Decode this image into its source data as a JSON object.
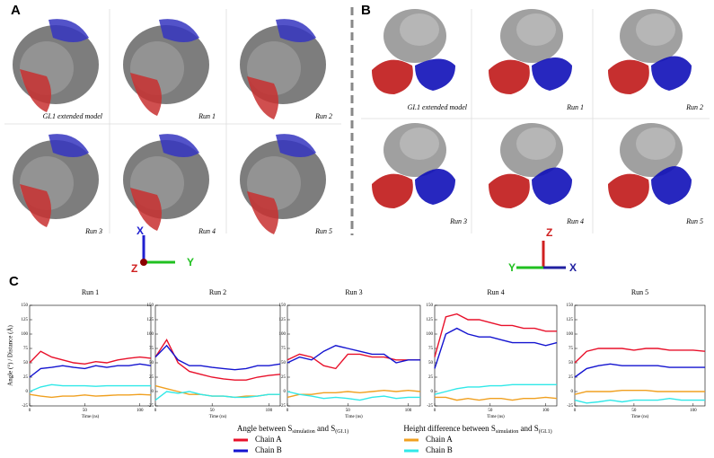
{
  "figure": {
    "panels": [
      {
        "label": "A",
        "images": [
          "GI.1 extended model",
          "Run 1",
          "Run 2",
          "Run 3",
          "Run 4",
          "Run 5"
        ],
        "axes": [
          "X",
          "Y",
          "Z"
        ]
      },
      {
        "label": "B",
        "images": [
          "GI.1 extended model",
          "Run 1",
          "Run 2",
          "Run 3",
          "Run 4",
          "Run 5"
        ],
        "axes": [
          "Z",
          "Y",
          "X"
        ]
      }
    ],
    "panel_c": "C",
    "legend": {
      "angle_title": [
        "Angle between S",
        "simulation",
        " and S",
        "(GI.1)"
      ],
      "height_title": [
        "Height difference between S",
        "simulation",
        " and S",
        "(GI.1)"
      ]
    }
  },
  "chart_data": [
    {
      "type": "line",
      "title": "Run 1",
      "xlabel": "Time (ns)",
      "ylabel": "Angle (°) / Distance (Å)",
      "x": [
        0,
        10,
        20,
        30,
        40,
        50,
        60,
        70,
        80,
        90,
        100,
        110
      ],
      "xlim": [
        0,
        110
      ],
      "xticks": [
        0,
        50,
        100
      ],
      "ylim": [
        -25,
        150
      ],
      "yticks": [
        -25,
        0,
        25,
        50,
        75,
        100,
        125,
        150
      ],
      "series": [
        {
          "name": "Chain A",
          "color": "#e8102a",
          "values": [
            50,
            70,
            60,
            55,
            50,
            48,
            52,
            50,
            55,
            58,
            60,
            58
          ]
        },
        {
          "name": "Chain B",
          "color": "#1414d0",
          "values": [
            25,
            40,
            42,
            45,
            42,
            40,
            45,
            42,
            45,
            45,
            48,
            45
          ]
        },
        {
          "name": "Chain A",
          "color": "#f0a020",
          "values": [
            -5,
            -8,
            -10,
            -8,
            -8,
            -6,
            -8,
            -7,
            -6,
            -6,
            -5,
            -6
          ]
        },
        {
          "name": "Chain B",
          "color": "#30e8e8",
          "values": [
            0,
            8,
            12,
            10,
            10,
            10,
            9,
            10,
            10,
            10,
            10,
            10
          ]
        }
      ]
    },
    {
      "type": "line",
      "title": "Run 2",
      "xlabel": "Time (ns)",
      "x": [
        0,
        10,
        20,
        30,
        40,
        50,
        60,
        70,
        80,
        90,
        100,
        110
      ],
      "xlim": [
        0,
        110
      ],
      "xticks": [
        0,
        50,
        100
      ],
      "ylim": [
        -25,
        150
      ],
      "yticks": [
        -25,
        0,
        25,
        50,
        75,
        100,
        125,
        150
      ],
      "series": [
        {
          "name": "Chain A",
          "color": "#e8102a",
          "values": [
            60,
            90,
            50,
            35,
            30,
            25,
            22,
            20,
            20,
            25,
            28,
            30
          ]
        },
        {
          "name": "Chain B",
          "color": "#1414d0",
          "values": [
            60,
            80,
            55,
            45,
            45,
            42,
            40,
            38,
            40,
            45,
            45,
            48
          ]
        },
        {
          "name": "Chain A",
          "color": "#f0a020",
          "values": [
            10,
            5,
            0,
            -5,
            -5,
            -8,
            -8,
            -10,
            -8,
            -8,
            -5,
            -5
          ]
        },
        {
          "name": "Chain B",
          "color": "#30e8e8",
          "values": [
            -15,
            0,
            -3,
            0,
            -5,
            -8,
            -8,
            -10,
            -10,
            -8,
            -5,
            -5
          ]
        }
      ]
    },
    {
      "type": "line",
      "title": "Run 3",
      "xlabel": "Time (ns)",
      "x": [
        0,
        10,
        20,
        30,
        40,
        50,
        60,
        70,
        80,
        90,
        100,
        110
      ],
      "xlim": [
        0,
        110
      ],
      "xticks": [
        0,
        50,
        100
      ],
      "ylim": [
        -25,
        150
      ],
      "yticks": [
        -25,
        0,
        25,
        50,
        75,
        100,
        125,
        150
      ],
      "series": [
        {
          "name": "Chain A",
          "color": "#e8102a",
          "values": [
            55,
            65,
            60,
            45,
            40,
            65,
            65,
            60,
            60,
            55,
            55,
            55
          ]
        },
        {
          "name": "Chain B",
          "color": "#1414d0",
          "values": [
            50,
            60,
            55,
            70,
            80,
            75,
            70,
            65,
            65,
            50,
            55,
            55
          ]
        },
        {
          "name": "Chain A",
          "color": "#f0a020",
          "values": [
            -10,
            -5,
            -5,
            -2,
            -2,
            0,
            -2,
            0,
            2,
            0,
            2,
            0
          ]
        },
        {
          "name": "Chain B",
          "color": "#30e8e8",
          "values": [
            0,
            -5,
            -8,
            -12,
            -10,
            -12,
            -15,
            -10,
            -8,
            -12,
            -10,
            -10
          ]
        }
      ]
    },
    {
      "type": "line",
      "title": "Run 4",
      "xlabel": "Time (ns)",
      "x": [
        0,
        10,
        20,
        30,
        40,
        50,
        60,
        70,
        80,
        90,
        100,
        110
      ],
      "xlim": [
        0,
        110
      ],
      "xticks": [
        0,
        50,
        100
      ],
      "ylim": [
        -25,
        150
      ],
      "yticks": [
        -25,
        0,
        25,
        50,
        75,
        100,
        125,
        150
      ],
      "series": [
        {
          "name": "Chain A",
          "color": "#e8102a",
          "values": [
            60,
            130,
            135,
            125,
            125,
            120,
            115,
            115,
            110,
            110,
            105,
            105
          ]
        },
        {
          "name": "Chain B",
          "color": "#1414d0",
          "values": [
            40,
            100,
            110,
            100,
            95,
            95,
            90,
            85,
            85,
            85,
            80,
            85
          ]
        },
        {
          "name": "Chain A",
          "color": "#f0a020",
          "values": [
            -10,
            -10,
            -15,
            -12,
            -15,
            -12,
            -12,
            -15,
            -12,
            -12,
            -10,
            -12
          ]
        },
        {
          "name": "Chain B",
          "color": "#30e8e8",
          "values": [
            -5,
            0,
            5,
            8,
            8,
            10,
            10,
            12,
            12,
            12,
            12,
            12
          ]
        }
      ]
    },
    {
      "type": "line",
      "title": "Run 5",
      "xlabel": "Time (ns)",
      "x": [
        0,
        10,
        20,
        30,
        40,
        50,
        60,
        70,
        80,
        90,
        100,
        110
      ],
      "xlim": [
        0,
        110
      ],
      "xticks": [
        0,
        50,
        100
      ],
      "ylim": [
        -25,
        150
      ],
      "yticks": [
        -25,
        0,
        25,
        50,
        75,
        100,
        125,
        150
      ],
      "series": [
        {
          "name": "Chain A",
          "color": "#e8102a",
          "values": [
            50,
            70,
            75,
            75,
            75,
            72,
            75,
            75,
            72,
            72,
            72,
            70
          ]
        },
        {
          "name": "Chain B",
          "color": "#1414d0",
          "values": [
            25,
            40,
            45,
            48,
            45,
            45,
            45,
            45,
            42,
            42,
            42,
            42
          ]
        },
        {
          "name": "Chain A",
          "color": "#f0a020",
          "values": [
            -5,
            0,
            0,
            0,
            2,
            2,
            2,
            0,
            0,
            0,
            0,
            0
          ]
        },
        {
          "name": "Chain B",
          "color": "#30e8e8",
          "values": [
            -15,
            -20,
            -18,
            -15,
            -18,
            -15,
            -15,
            -15,
            -12,
            -15,
            -15,
            -15
          ]
        }
      ]
    }
  ]
}
